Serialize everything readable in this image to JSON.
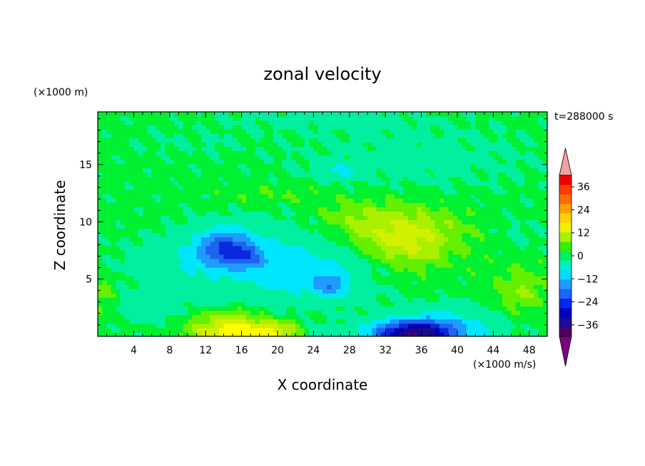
{
  "chart_data": {
    "type": "heatmap",
    "title": "zonal velocity",
    "xlabel": "X coordinate",
    "ylabel": "Z coordinate",
    "y_unit": "(×1000 m)",
    "colorbar_unit": "(×1000 m/s)",
    "time_label": "t=288000 s",
    "xlim": [
      0,
      50
    ],
    "ylim": [
      0,
      19.6
    ],
    "x_ticks": [
      4,
      8,
      12,
      16,
      20,
      24,
      28,
      32,
      36,
      40,
      44,
      48
    ],
    "y_ticks": [
      5,
      10,
      15
    ],
    "colorbar_ticks": [
      36,
      24,
      12,
      0,
      -12,
      -24,
      -36
    ],
    "levels": [
      -42,
      -36,
      -30,
      -24,
      -18,
      -12,
      -6,
      0,
      3,
      6,
      9,
      12,
      18,
      24,
      30,
      36,
      42
    ],
    "colors": [
      "#4b0082",
      "#1a0a8c",
      "#0000b4",
      "#0a28dc",
      "#1e64f0",
      "#1e9bff",
      "#00e6ff",
      "#00f0a0",
      "#00f032",
      "#64f000",
      "#aaf000",
      "#d2f000",
      "#ffff00",
      "#ffdc00",
      "#ffa000",
      "#ff6400",
      "#ff3200",
      "#e60000"
    ],
    "colorbar_colors": [
      "#7d007d",
      "#500064",
      "#1e0a96",
      "#0000be",
      "#0028f0",
      "#1e64ff",
      "#1e9bff",
      "#00dcff",
      "#00f0c8",
      "#00f064",
      "#32f000",
      "#aaf000",
      "#f0f000",
      "#ffd200",
      "#ffa000",
      "#ff6e00",
      "#ff3c00",
      "#f00000",
      "#f5a0a0"
    ],
    "background_u": 1.2,
    "features": [
      {
        "x": 15,
        "z": 0.4,
        "sx": 4.5,
        "sz": 1.0,
        "u": 13
      },
      {
        "x": 20,
        "z": 0.4,
        "sx": 3.0,
        "sz": 0.9,
        "u": 7
      },
      {
        "x": 14,
        "z": 1.8,
        "sx": 4.0,
        "sz": 0.8,
        "u": 5
      },
      {
        "x": 35,
        "z": 0.2,
        "sx": 4.5,
        "sz": 1.1,
        "u": -36
      },
      {
        "x": 38,
        "z": 0.8,
        "sx": 6.0,
        "sz": 1.6,
        "u": -12
      },
      {
        "x": 25,
        "z": 0.3,
        "sx": 2.5,
        "sz": 0.8,
        "u": -5
      },
      {
        "x": 14,
        "z": 7.8,
        "sx": 3.0,
        "sz": 1.6,
        "u": -20
      },
      {
        "x": 16.5,
        "z": 7.0,
        "sx": 2.0,
        "sz": 1.0,
        "u": -10
      },
      {
        "x": 20,
        "z": 6.5,
        "sx": 9.0,
        "sz": 3.0,
        "u": -10
      },
      {
        "x": 26,
        "z": 4.5,
        "sx": 1.5,
        "sz": 0.8,
        "u": -12
      },
      {
        "x": 25,
        "z": 5.0,
        "sx": 5.0,
        "sz": 2.0,
        "u": -5
      },
      {
        "x": 8,
        "z": 6.5,
        "sx": 6.0,
        "sz": 2.2,
        "u": -4
      },
      {
        "x": 6,
        "z": 2.5,
        "sx": 6.0,
        "sz": 1.5,
        "u": -3
      },
      {
        "x": 33,
        "z": 9.0,
        "sx": 7.0,
        "sz": 2.6,
        "u": 8
      },
      {
        "x": 35,
        "z": 8.0,
        "sx": 4.0,
        "sz": 2.0,
        "u": 3
      },
      {
        "x": 28,
        "z": 10.5,
        "sx": 4.0,
        "sz": 1.5,
        "u": 2
      },
      {
        "x": 47,
        "z": 4.0,
        "sx": 2.5,
        "sz": 2.0,
        "u": 5
      },
      {
        "x": 47,
        "z": 9.0,
        "sx": 3.0,
        "sz": 1.5,
        "u": -2
      },
      {
        "x": 35,
        "z": 15.5,
        "sx": 14.0,
        "sz": 3.0,
        "u": -3
      },
      {
        "x": 10,
        "z": 17.0,
        "sx": 7.0,
        "sz": 1.2,
        "u": -1.5
      },
      {
        "x": 25,
        "z": 19.0,
        "sx": 12.0,
        "sz": 1.0,
        "u": -2.5
      },
      {
        "x": 27,
        "z": 14.5,
        "sx": 2.0,
        "sz": 0.6,
        "u": -8
      },
      {
        "x": 0.5,
        "z": 3.5,
        "sx": 1.5,
        "sz": 2.0,
        "u": 4
      },
      {
        "x": 20,
        "z": 12.5,
        "sx": 6.0,
        "sz": 1.0,
        "u": 2
      }
    ]
  }
}
